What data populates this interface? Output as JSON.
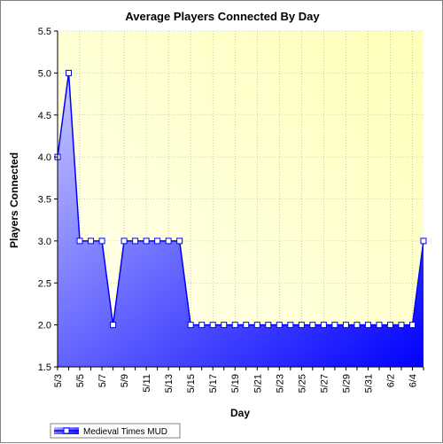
{
  "colors": {
    "plot_bg_from": "#fffff0",
    "plot_bg_to": "#ffffb8",
    "area_top": "#c8c8ff",
    "area_bottom": "#0000ff",
    "line": "#0000ff",
    "marker_fill": "#ffffff",
    "grid": "#a8a8a8"
  },
  "chart_data": {
    "type": "area",
    "title": "Average Players Connected By Day",
    "xlabel": "Day",
    "ylabel": "Players Connected",
    "ylim": [
      1.5,
      5.5
    ],
    "yticks": [
      "1.5",
      "2.0",
      "2.5",
      "3.0",
      "3.5",
      "4.0",
      "4.5",
      "5.0",
      "5.5"
    ],
    "x": [
      "5/3",
      "5/4",
      "5/5",
      "5/6",
      "5/7",
      "5/8",
      "5/9",
      "5/10",
      "5/11",
      "5/12",
      "5/13",
      "5/14",
      "5/15",
      "5/16",
      "5/17",
      "5/18",
      "5/19",
      "5/20",
      "5/21",
      "5/22",
      "5/23",
      "5/24",
      "5/25",
      "5/26",
      "5/27",
      "5/28",
      "5/29",
      "5/30",
      "5/31",
      "6/1",
      "6/2",
      "6/3",
      "6/4",
      "6/5"
    ],
    "xtick_labels": [
      "5/3",
      "5/5",
      "5/7",
      "5/9",
      "5/11",
      "5/13",
      "5/15",
      "5/17",
      "5/19",
      "5/21",
      "5/23",
      "5/25",
      "5/27",
      "5/29",
      "5/31",
      "6/2",
      "6/4"
    ],
    "series": [
      {
        "name": "Medieval Times MUD",
        "values": [
          4.0,
          5.0,
          3.0,
          3.0,
          3.0,
          2.0,
          3.0,
          3.0,
          3.0,
          3.0,
          3.0,
          3.0,
          2.0,
          2.0,
          2.0,
          2.0,
          2.0,
          2.0,
          2.0,
          2.0,
          2.0,
          2.0,
          2.0,
          2.0,
          2.0,
          2.0,
          2.0,
          2.0,
          2.0,
          2.0,
          2.0,
          2.0,
          2.0,
          3.0
        ]
      }
    ],
    "grid": true,
    "legend": "bottom-left"
  }
}
